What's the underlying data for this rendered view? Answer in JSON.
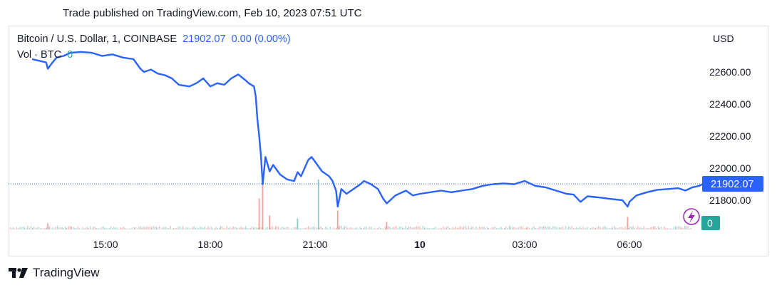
{
  "header": {
    "published": "Trade published on TradingView.com, Feb 10, 2023 07:51 UTC"
  },
  "legend": {
    "symbol": "Bitcoin / U.S. Dollar, 1, COINBASE",
    "price": "21902.07",
    "change": "0.00 (0.00%)",
    "volume_label": "Vol · BTC",
    "volume_value": "0"
  },
  "chart_data": {
    "type": "line",
    "currency": "USD",
    "last_price": 21902.07,
    "last_price_label": "21902.07",
    "volume_badge": "0",
    "y_ticks": [
      "22600.00",
      "22400.00",
      "22200.00",
      "22000.00",
      "21800.00"
    ],
    "y_tick_values": [
      22600,
      22400,
      22200,
      22000,
      21800
    ],
    "ylim": [
      21700,
      22750
    ],
    "x_ticks": [
      "15:00",
      "18:00",
      "21:00",
      "10",
      "03:00",
      "06:00"
    ],
    "x_tick_hours": [
      15,
      18,
      21,
      24,
      27,
      30
    ],
    "x_tick_bold": [
      false,
      false,
      false,
      true,
      false,
      false
    ],
    "xlim_hours": [
      12.9,
      32.3
    ],
    "series": [
      {
        "color": "#2962ff",
        "points": [
          [
            12.9,
            22680
          ],
          [
            13.1,
            22670
          ],
          [
            13.3,
            22660
          ],
          [
            13.35,
            22620
          ],
          [
            13.45,
            22650
          ],
          [
            13.6,
            22690
          ],
          [
            13.8,
            22700
          ],
          [
            14.0,
            22720
          ],
          [
            14.3,
            22725
          ],
          [
            14.6,
            22720
          ],
          [
            14.9,
            22700
          ],
          [
            15.2,
            22710
          ],
          [
            15.5,
            22690
          ],
          [
            15.8,
            22680
          ],
          [
            16.0,
            22620
          ],
          [
            16.1,
            22600
          ],
          [
            16.3,
            22615
          ],
          [
            16.5,
            22590
          ],
          [
            16.7,
            22580
          ],
          [
            16.9,
            22560
          ],
          [
            17.1,
            22520
          ],
          [
            17.4,
            22510
          ],
          [
            17.6,
            22530
          ],
          [
            17.8,
            22560
          ],
          [
            18.0,
            22510
          ],
          [
            18.2,
            22530
          ],
          [
            18.4,
            22520
          ],
          [
            18.6,
            22560
          ],
          [
            18.8,
            22585
          ],
          [
            19.0,
            22550
          ],
          [
            19.1,
            22530
          ],
          [
            19.25,
            22510
          ],
          [
            19.3,
            22450
          ],
          [
            19.35,
            22300
          ],
          [
            19.4,
            22200
          ],
          [
            19.45,
            22080
          ],
          [
            19.5,
            21900
          ],
          [
            19.58,
            22070
          ],
          [
            19.7,
            21980
          ],
          [
            19.8,
            22020
          ],
          [
            20.0,
            21960
          ],
          [
            20.2,
            21930
          ],
          [
            20.4,
            21920
          ],
          [
            20.5,
            21975
          ],
          [
            20.6,
            21950
          ],
          [
            20.8,
            22050
          ],
          [
            20.9,
            22070
          ],
          [
            21.0,
            22040
          ],
          [
            21.2,
            21980
          ],
          [
            21.4,
            21950
          ],
          [
            21.5,
            21920
          ],
          [
            21.6,
            21860
          ],
          [
            21.65,
            21760
          ],
          [
            21.75,
            21870
          ],
          [
            21.9,
            21840
          ],
          [
            22.1,
            21870
          ],
          [
            22.3,
            21900
          ],
          [
            22.4,
            21920
          ],
          [
            22.6,
            21900
          ],
          [
            22.8,
            21870
          ],
          [
            22.95,
            21810
          ],
          [
            23.05,
            21780
          ],
          [
            23.3,
            21830
          ],
          [
            23.6,
            21860
          ],
          [
            23.8,
            21830
          ],
          [
            24.0,
            21840
          ],
          [
            24.3,
            21850
          ],
          [
            24.6,
            21860
          ],
          [
            24.9,
            21850
          ],
          [
            25.2,
            21860
          ],
          [
            25.5,
            21870
          ],
          [
            25.8,
            21890
          ],
          [
            26.1,
            21900
          ],
          [
            26.4,
            21905
          ],
          [
            26.7,
            21900
          ],
          [
            27.0,
            21920
          ],
          [
            27.3,
            21890
          ],
          [
            27.6,
            21880
          ],
          [
            27.9,
            21860
          ],
          [
            28.2,
            21840
          ],
          [
            28.4,
            21835
          ],
          [
            28.6,
            21790
          ],
          [
            28.8,
            21825
          ],
          [
            29.0,
            21820
          ],
          [
            29.2,
            21815
          ],
          [
            29.4,
            21810
          ],
          [
            29.6,
            21805
          ],
          [
            29.8,
            21800
          ],
          [
            29.95,
            21760
          ],
          [
            30.0,
            21790
          ],
          [
            30.2,
            21830
          ],
          [
            30.5,
            21850
          ],
          [
            30.8,
            21865
          ],
          [
            31.1,
            21870
          ],
          [
            31.4,
            21875
          ],
          [
            31.6,
            21860
          ],
          [
            31.8,
            21880
          ],
          [
            32.0,
            21890
          ],
          [
            32.1,
            21902
          ]
        ]
      }
    ],
    "volume_spikes": [
      {
        "x": 13.35,
        "v": 0.12,
        "color": "#ef5350"
      },
      {
        "x": 19.4,
        "v": 0.62,
        "color": "#ef5350"
      },
      {
        "x": 19.5,
        "v": 0.92,
        "color": "#ef5350"
      },
      {
        "x": 19.7,
        "v": 0.28,
        "color": "#ef5350"
      },
      {
        "x": 20.5,
        "v": 0.22,
        "color": "#26a69a"
      },
      {
        "x": 21.1,
        "v": 1.0,
        "color": "#26a69a"
      },
      {
        "x": 21.65,
        "v": 0.38,
        "color": "#ef5350"
      },
      {
        "x": 23.05,
        "v": 0.15,
        "color": "#ef5350"
      },
      {
        "x": 29.95,
        "v": 0.25,
        "color": "#ef5350"
      }
    ]
  }
}
